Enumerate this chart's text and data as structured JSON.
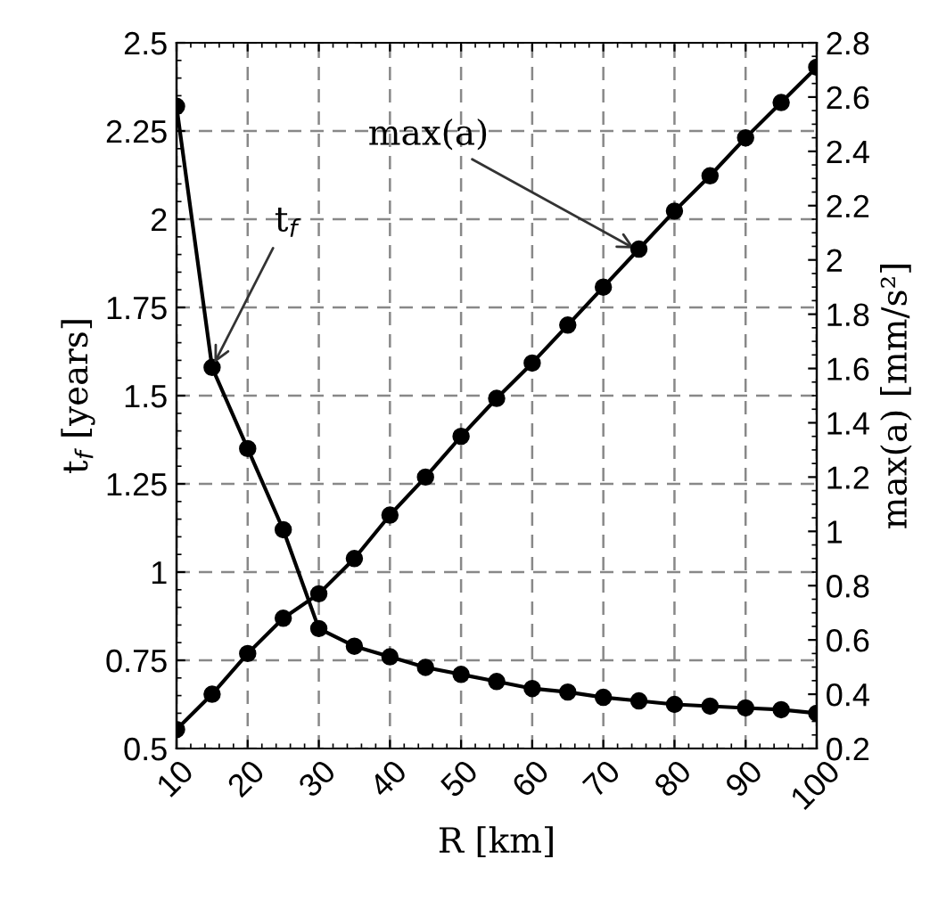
{
  "chart_data": {
    "type": "line",
    "xlabel": "R [km]",
    "ylabel": "t$_{f}$ [years]",
    "y2label": "max(a) [mm/s²]",
    "x": [
      10,
      15,
      20,
      25,
      30,
      35,
      40,
      45,
      50,
      55,
      60,
      65,
      70,
      75,
      80,
      85,
      90,
      95,
      100
    ],
    "series": [
      {
        "color": "#000000",
        "values": [
          2.32,
          1.58,
          1.35,
          1.12,
          0.84,
          0.79,
          0.76,
          0.73,
          0.71,
          0.69,
          0.67,
          0.66,
          0.645,
          0.635,
          0.625,
          0.62,
          0.615,
          0.61,
          0.6
        ]
      },
      {
        "color": "#000000",
        "axis": "y2",
        "values": [
          0.27,
          0.4,
          0.55,
          0.68,
          0.77,
          0.9,
          1.06,
          1.2,
          1.35,
          1.49,
          1.62,
          1.76,
          1.9,
          2.04,
          2.18,
          2.31,
          2.45,
          2.58,
          2.71
        ]
      }
    ],
    "annotations": [
      {
        "text": "t$_{f}$",
        "x": 15,
        "y": 1.58
      },
      {
        "text": "max(a)",
        "x": 75,
        "y": 1.91
      }
    ],
    "xlim": [
      10,
      100
    ],
    "xticks": [
      10,
      20,
      30,
      40,
      50,
      60,
      70,
      80,
      90,
      100
    ],
    "ylim": [
      0.5,
      2.5
    ],
    "yticks": [
      0.5,
      0.75,
      1,
      1.25,
      1.5,
      1.75,
      2,
      2.25,
      2.5
    ],
    "y2lim": [
      0.2,
      2.8
    ],
    "y2ticks": [
      0.2,
      0.4,
      0.6,
      0.8,
      1,
      1.2,
      1.4,
      1.6,
      1.8,
      2,
      2.2,
      2.4,
      2.6,
      2.8
    ],
    "grid": true,
    "marker": "circle",
    "line_style": "solid"
  }
}
